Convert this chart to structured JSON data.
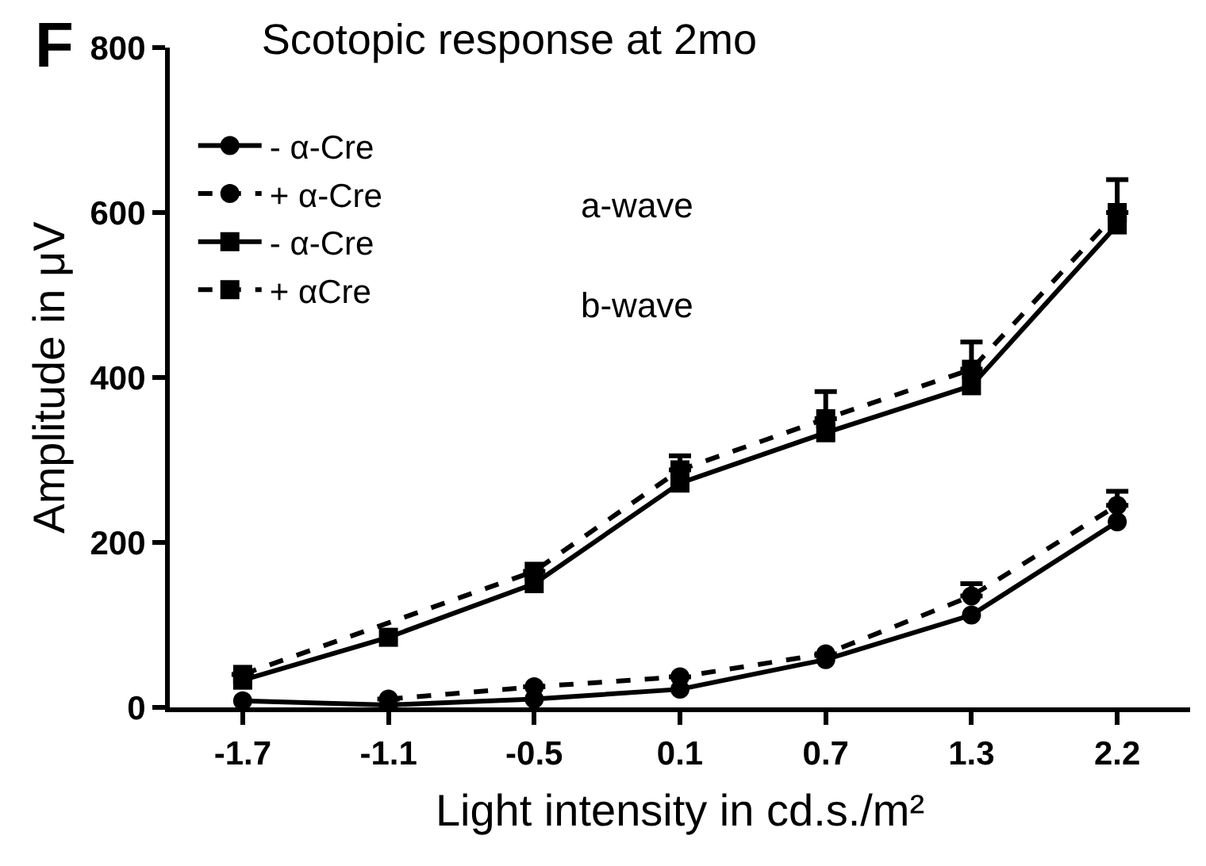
{
  "chart_data": {
    "type": "line",
    "title": "Scotopic response at 2mo",
    "xlabel": "Light intensity in cd.s./m²",
    "ylabel": "Amplitude in μV",
    "annotations": [
      "F",
      "a-wave",
      "b-wave"
    ],
    "categories": [
      "-1.7",
      "-1.1",
      "-0.5",
      "0.1",
      "0.7",
      "1.3",
      "2.2"
    ],
    "ylim": [
      0,
      800
    ],
    "yticks": [
      0,
      200,
      400,
      600,
      800
    ],
    "legend": "top left",
    "series": [
      {
        "name": "- α-Cre",
        "color": "#000000",
        "marker": "circle",
        "line_style": "solid",
        "values": [
          8,
          3,
          10,
          22,
          58,
          112,
          225
        ]
      },
      {
        "name": "+ α-Cre",
        "color": "#000000",
        "marker": "circle",
        "line_style": "dashed",
        "values": [
          null,
          10,
          25,
          37,
          65,
          135,
          245
        ],
        "errors": [
          null,
          null,
          null,
          null,
          null,
          15,
          17
        ]
      },
      {
        "name": "- α-Cre",
        "color": "#000000",
        "marker": "square",
        "line_style": "solid",
        "values": [
          33,
          85,
          150,
          272,
          333,
          390,
          585
        ]
      },
      {
        "name": "+ αCre",
        "color": "#000000",
        "marker": "square",
        "line_style": "dashed",
        "values": [
          40,
          null,
          165,
          288,
          350,
          410,
          600
        ],
        "errors": [
          null,
          null,
          null,
          17,
          33,
          33,
          40
        ]
      }
    ]
  }
}
